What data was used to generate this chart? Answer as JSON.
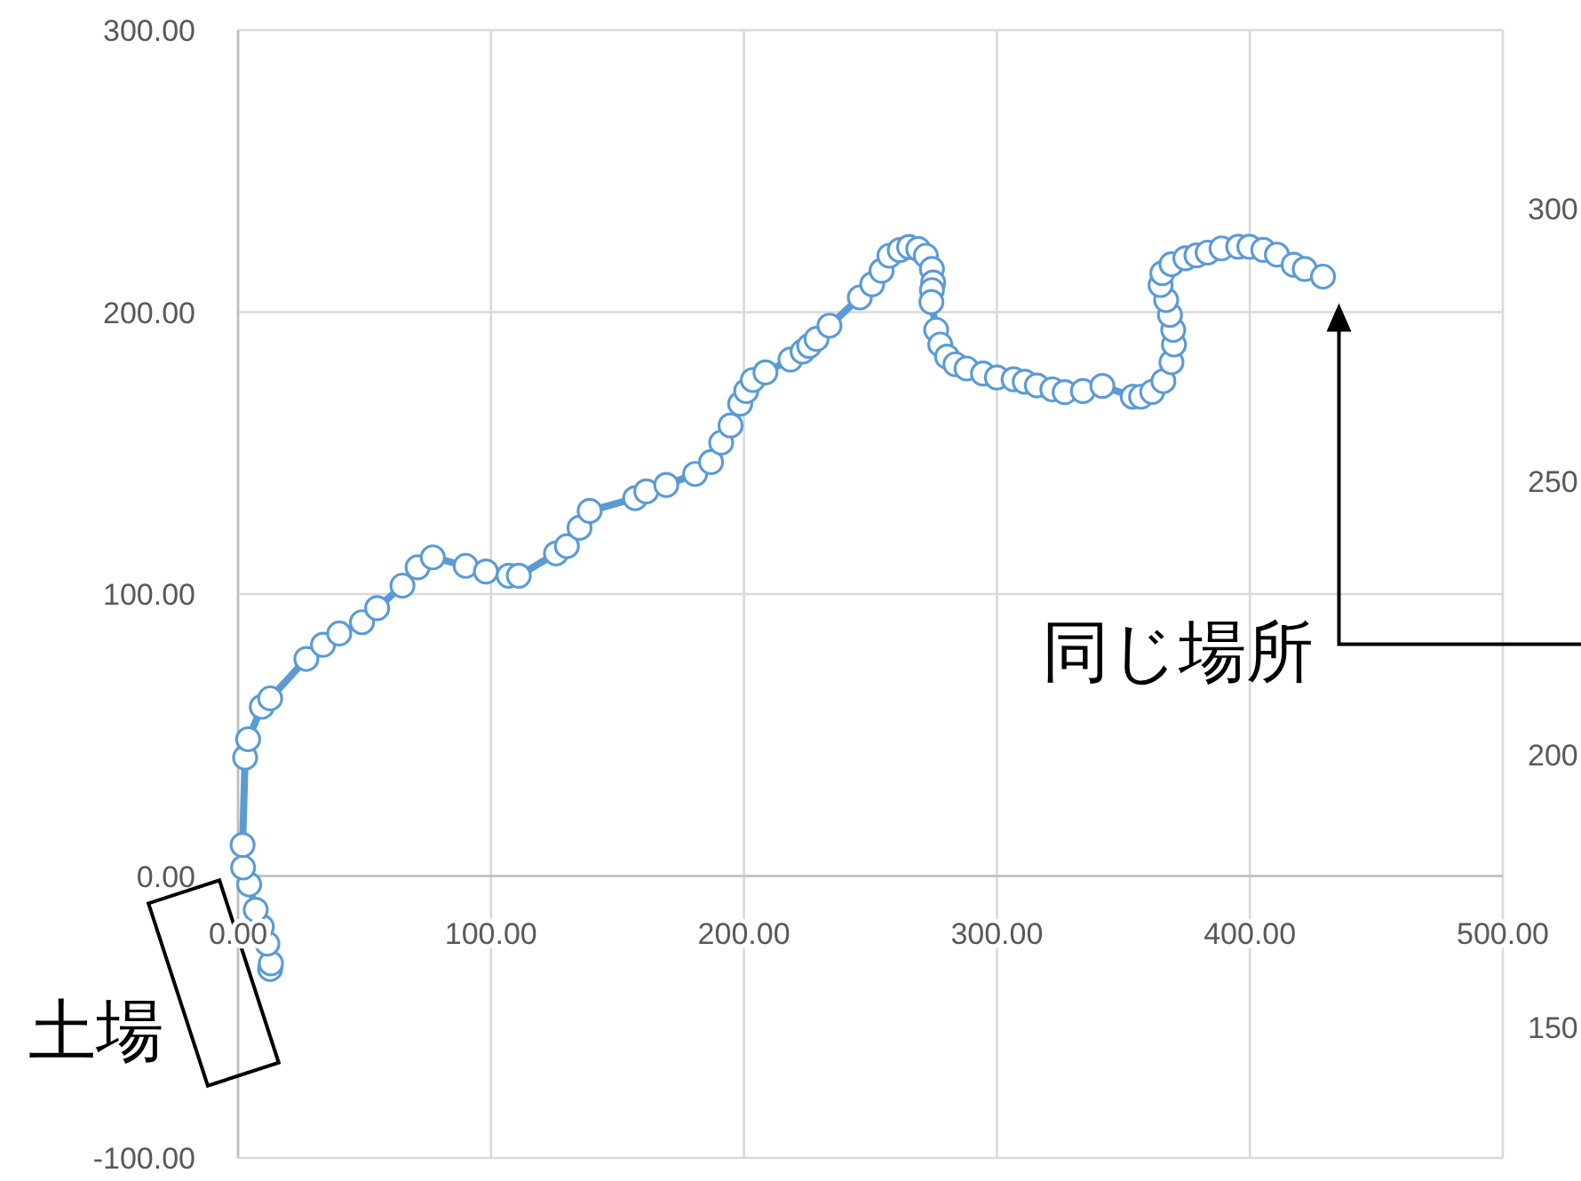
{
  "chart_data": {
    "type": "line",
    "marker": "circle",
    "grid": true,
    "xlim": [
      0,
      500
    ],
    "xticks": [
      {
        "value": 0,
        "label": "0.00"
      },
      {
        "value": 100,
        "label": "100.00"
      },
      {
        "value": 200,
        "label": "200.00"
      },
      {
        "value": 300,
        "label": "300.00"
      },
      {
        "value": 400,
        "label": "400.00"
      },
      {
        "value": 500,
        "label": "500.00"
      }
    ],
    "ylim": [
      -100,
      300
    ],
    "yticks": [
      {
        "value": -100,
        "label": "-100.00"
      },
      {
        "value": 0,
        "label": "0.00"
      },
      {
        "value": 100,
        "label": "100.00"
      },
      {
        "value": 200,
        "label": "200.00"
      },
      {
        "value": 300,
        "label": "300.00"
      }
    ],
    "y2lim": [
      126,
      332.8
    ],
    "y2ticks": [
      150,
      200,
      250,
      300
    ],
    "series": [
      {
        "color": "#5b9bd5",
        "x": [
          12.7,
          13,
          11.6,
          9.4,
          7,
          4.4,
          2,
          1.8,
          2.8,
          4,
          9.4,
          12.7,
          27,
          33.6,
          40,
          49,
          55,
          65,
          71,
          77,
          90,
          98,
          107,
          111,
          125.7,
          130,
          135,
          139,
          157,
          161.4,
          169.3,
          180.7,
          187,
          191,
          194.7,
          198.5,
          200.9,
          203.5,
          208.5,
          218.4,
          223.2,
          225.8,
          228.7,
          233.8,
          245.8,
          250.7,
          254.4,
          257.5,
          261.6,
          265.3,
          268.9,
          271.9,
          274.3,
          274.8,
          274.3,
          274.1,
          276,
          277.6,
          280.3,
          283.6,
          288,
          294.5,
          300,
          306.6,
          311,
          315.8,
          321.9,
          326.8,
          334,
          341.7,
          353.7,
          357,
          361.4,
          365.8,
          369,
          370,
          369.7,
          368.4,
          366.9,
          364.7,
          365.4,
          369,
          374.5,
          378.9,
          383.3,
          388.8,
          395.4,
          399.8,
          405.3,
          410.7,
          417.3,
          421.7,
          428.9
        ],
        "values": [
          -33,
          -31,
          -24,
          -18,
          -12,
          -3,
          3,
          11,
          42,
          48.5,
          60,
          63,
          77,
          82,
          86,
          90,
          95,
          103,
          109.5,
          113,
          110,
          108,
          106.5,
          106.5,
          114.4,
          117,
          123.5,
          129.5,
          134,
          136.4,
          138.7,
          142.6,
          146.8,
          153.7,
          159.8,
          167.5,
          172,
          175.9,
          178.6,
          183.2,
          186,
          188,
          190.5,
          195.2,
          205.2,
          209.9,
          214.7,
          220,
          222,
          223.1,
          222.4,
          220,
          215.3,
          210.5,
          207.8,
          203.6,
          193.7,
          188.5,
          184.2,
          181.5,
          180,
          178.2,
          176.8,
          176.2,
          175.3,
          174,
          172.6,
          171.6,
          172,
          173.8,
          170,
          170,
          171.7,
          175.5,
          182.2,
          188.5,
          193.7,
          199,
          204.3,
          209.6,
          213.8,
          217,
          219.1,
          220.1,
          221.1,
          222.6,
          223.2,
          223.2,
          222.1,
          220.4,
          216.8,
          215.3,
          212.6
        ]
      }
    ],
    "annotations": [
      "同じ場所",
      "土場"
    ]
  }
}
